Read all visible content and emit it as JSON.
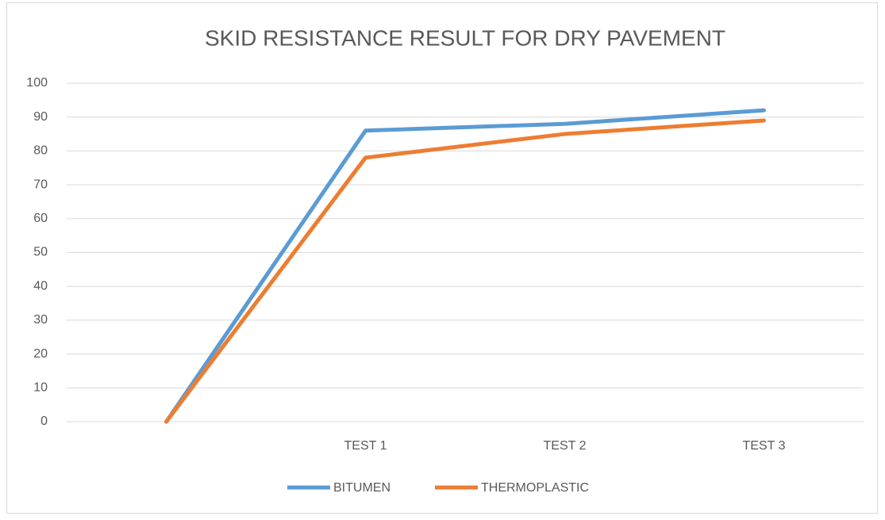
{
  "chart_data": {
    "type": "line",
    "title": "SKID RESISTANCE RESULT FOR DRY PAVEMENT",
    "categories": [
      null,
      "TEST 1",
      "TEST 2",
      "TEST 3"
    ],
    "series": [
      {
        "name": "BITUMEN",
        "color": "#5b9bd5",
        "values": [
          0,
          86,
          88,
          92
        ]
      },
      {
        "name": "THERMOPLASTIC",
        "color": "#ed7d31",
        "values": [
          0,
          78,
          85,
          89
        ]
      }
    ],
    "ylim": [
      0,
      100
    ],
    "yticks": [
      0,
      10,
      20,
      30,
      40,
      50,
      60,
      70,
      80,
      90,
      100
    ],
    "grid": true,
    "legend": "bottom"
  }
}
